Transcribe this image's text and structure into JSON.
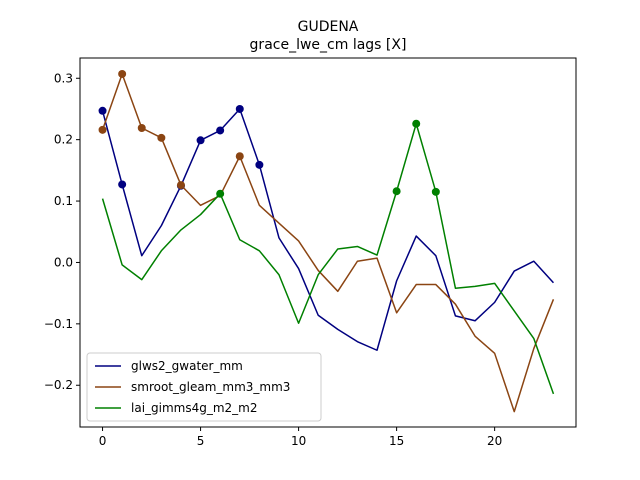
{
  "chart_data": {
    "type": "line",
    "title": "GUDENA",
    "subtitle": "grace_lwe_cm lags [X]",
    "xlabel": "",
    "ylabel": "",
    "xlim": [
      -1.15,
      24.15
    ],
    "ylim": [
      -0.268,
      0.333
    ],
    "xticks": [
      0,
      5,
      10,
      15,
      20
    ],
    "yticks": [
      -0.2,
      -0.1,
      0.0,
      0.1,
      0.2,
      0.3
    ],
    "ytick_labels": [
      "−0.2",
      "−0.1",
      "0.0",
      "0.1",
      "0.2",
      "0.3"
    ],
    "legend_position": "lower-left",
    "series": [
      {
        "name": "glws2_gwater_mm",
        "color": "#000080",
        "x": [
          0,
          1,
          2,
          3,
          4,
          5,
          6,
          7,
          8,
          9,
          10,
          11,
          12,
          13,
          14,
          15,
          16,
          17,
          18,
          19,
          20,
          21,
          22,
          23
        ],
        "values": [
          0.247,
          0.127,
          0.011,
          0.06,
          0.125,
          0.199,
          0.215,
          0.25,
          0.159,
          0.04,
          -0.01,
          -0.086,
          -0.109,
          -0.129,
          -0.143,
          -0.03,
          0.043,
          0.011,
          -0.087,
          -0.095,
          -0.065,
          -0.014,
          0.002,
          -0.033
        ],
        "markers": [
          0,
          1,
          4,
          5,
          6,
          7,
          8
        ]
      },
      {
        "name": "smroot_gleam_mm3_mm3",
        "color": "#8b4513",
        "x": [
          0,
          1,
          2,
          3,
          4,
          5,
          6,
          7,
          8,
          9,
          10,
          11,
          12,
          13,
          14,
          15,
          16,
          17,
          18,
          19,
          20,
          21,
          22,
          23
        ],
        "values": [
          0.216,
          0.307,
          0.219,
          0.203,
          0.126,
          0.093,
          0.109,
          0.173,
          0.093,
          0.064,
          0.035,
          -0.013,
          -0.047,
          0.002,
          0.007,
          -0.082,
          -0.036,
          -0.036,
          -0.068,
          -0.12,
          -0.148,
          -0.243,
          -0.14,
          -0.06
        ],
        "markers": [
          0,
          1,
          2,
          3,
          4,
          7
        ]
      },
      {
        "name": "lai_gimms4g_m2_m2",
        "color": "#008000",
        "x": [
          0,
          1,
          2,
          3,
          4,
          5,
          6,
          7,
          8,
          9,
          10,
          11,
          12,
          13,
          14,
          15,
          16,
          17,
          18,
          19,
          20,
          21,
          22,
          23
        ],
        "values": [
          0.104,
          -0.004,
          -0.028,
          0.019,
          0.053,
          0.078,
          0.112,
          0.037,
          0.019,
          -0.02,
          -0.099,
          -0.02,
          0.022,
          0.026,
          0.012,
          0.116,
          0.226,
          0.115,
          -0.042,
          -0.039,
          -0.034,
          -0.079,
          -0.124,
          -0.214
        ],
        "markers": [
          6,
          15,
          16,
          17
        ]
      }
    ]
  }
}
